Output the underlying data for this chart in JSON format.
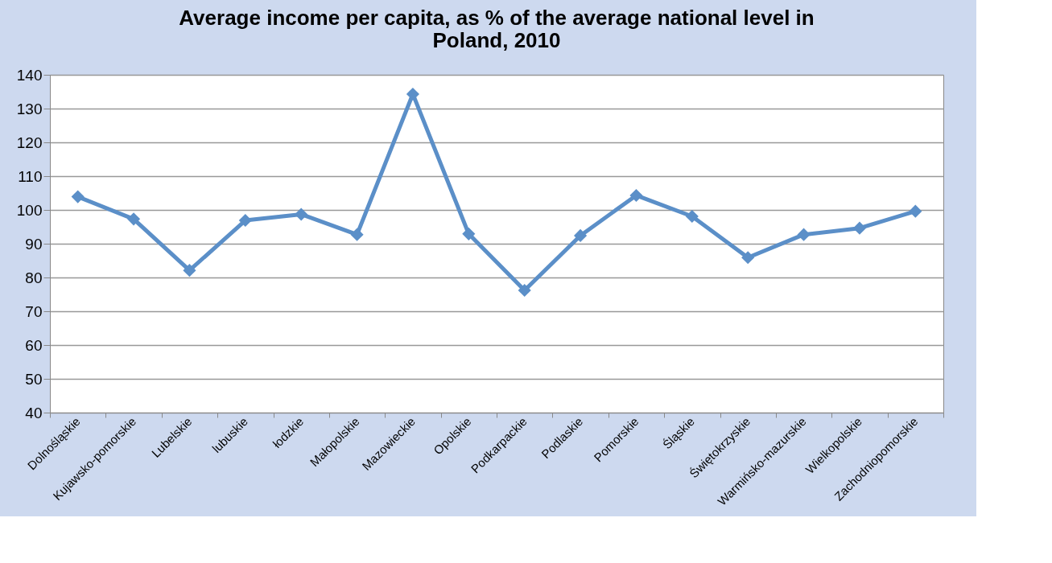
{
  "chart_data": {
    "type": "line",
    "title": [
      "Average income per capita, as % of the average national level in",
      "Poland, 2010"
    ],
    "categories": [
      "Dolnośląskie",
      "Kujawsko-pomorskie",
      "Lubelskie",
      "lubuskie",
      "łodzkie",
      "Małopolskie",
      "Mazowieckie",
      "Opolskie",
      "Podkarpackie",
      "Podlaskie",
      "Pomorskie",
      "Śląskie",
      "Świętokrzyskie",
      "Warmińsko-mazurskie",
      "Wielkopolskie",
      "Zachodniopomorskie"
    ],
    "series": [
      {
        "color": "#5b8fc8",
        "values": [
          103.9,
          97.3,
          82.1,
          96.9,
          98.7,
          92.7,
          134.3,
          92.9,
          76.2,
          92.4,
          104.3,
          98.1,
          85.9,
          92.7,
          94.6,
          99.6
        ]
      }
    ],
    "ylim": [
      40,
      140
    ],
    "yticks": [
      40,
      50,
      60,
      70,
      80,
      90,
      100,
      110,
      120,
      130,
      140
    ],
    "grid": "y",
    "marker": "diamond",
    "line_style": "solid",
    "legend": false
  }
}
